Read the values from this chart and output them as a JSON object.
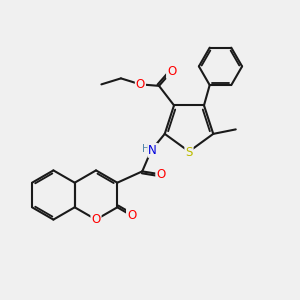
{
  "bg_color": "#f0f0f0",
  "bond_color": "#1a1a1a",
  "bond_width": 1.5,
  "O_color": "#ff0000",
  "N_color": "#0000dd",
  "S_color": "#bbbb00",
  "font_size": 8.5,
  "fig_size": [
    3.0,
    3.0
  ],
  "dpi": 100,
  "xlim": [
    0,
    10
  ],
  "ylim": [
    0,
    10
  ]
}
